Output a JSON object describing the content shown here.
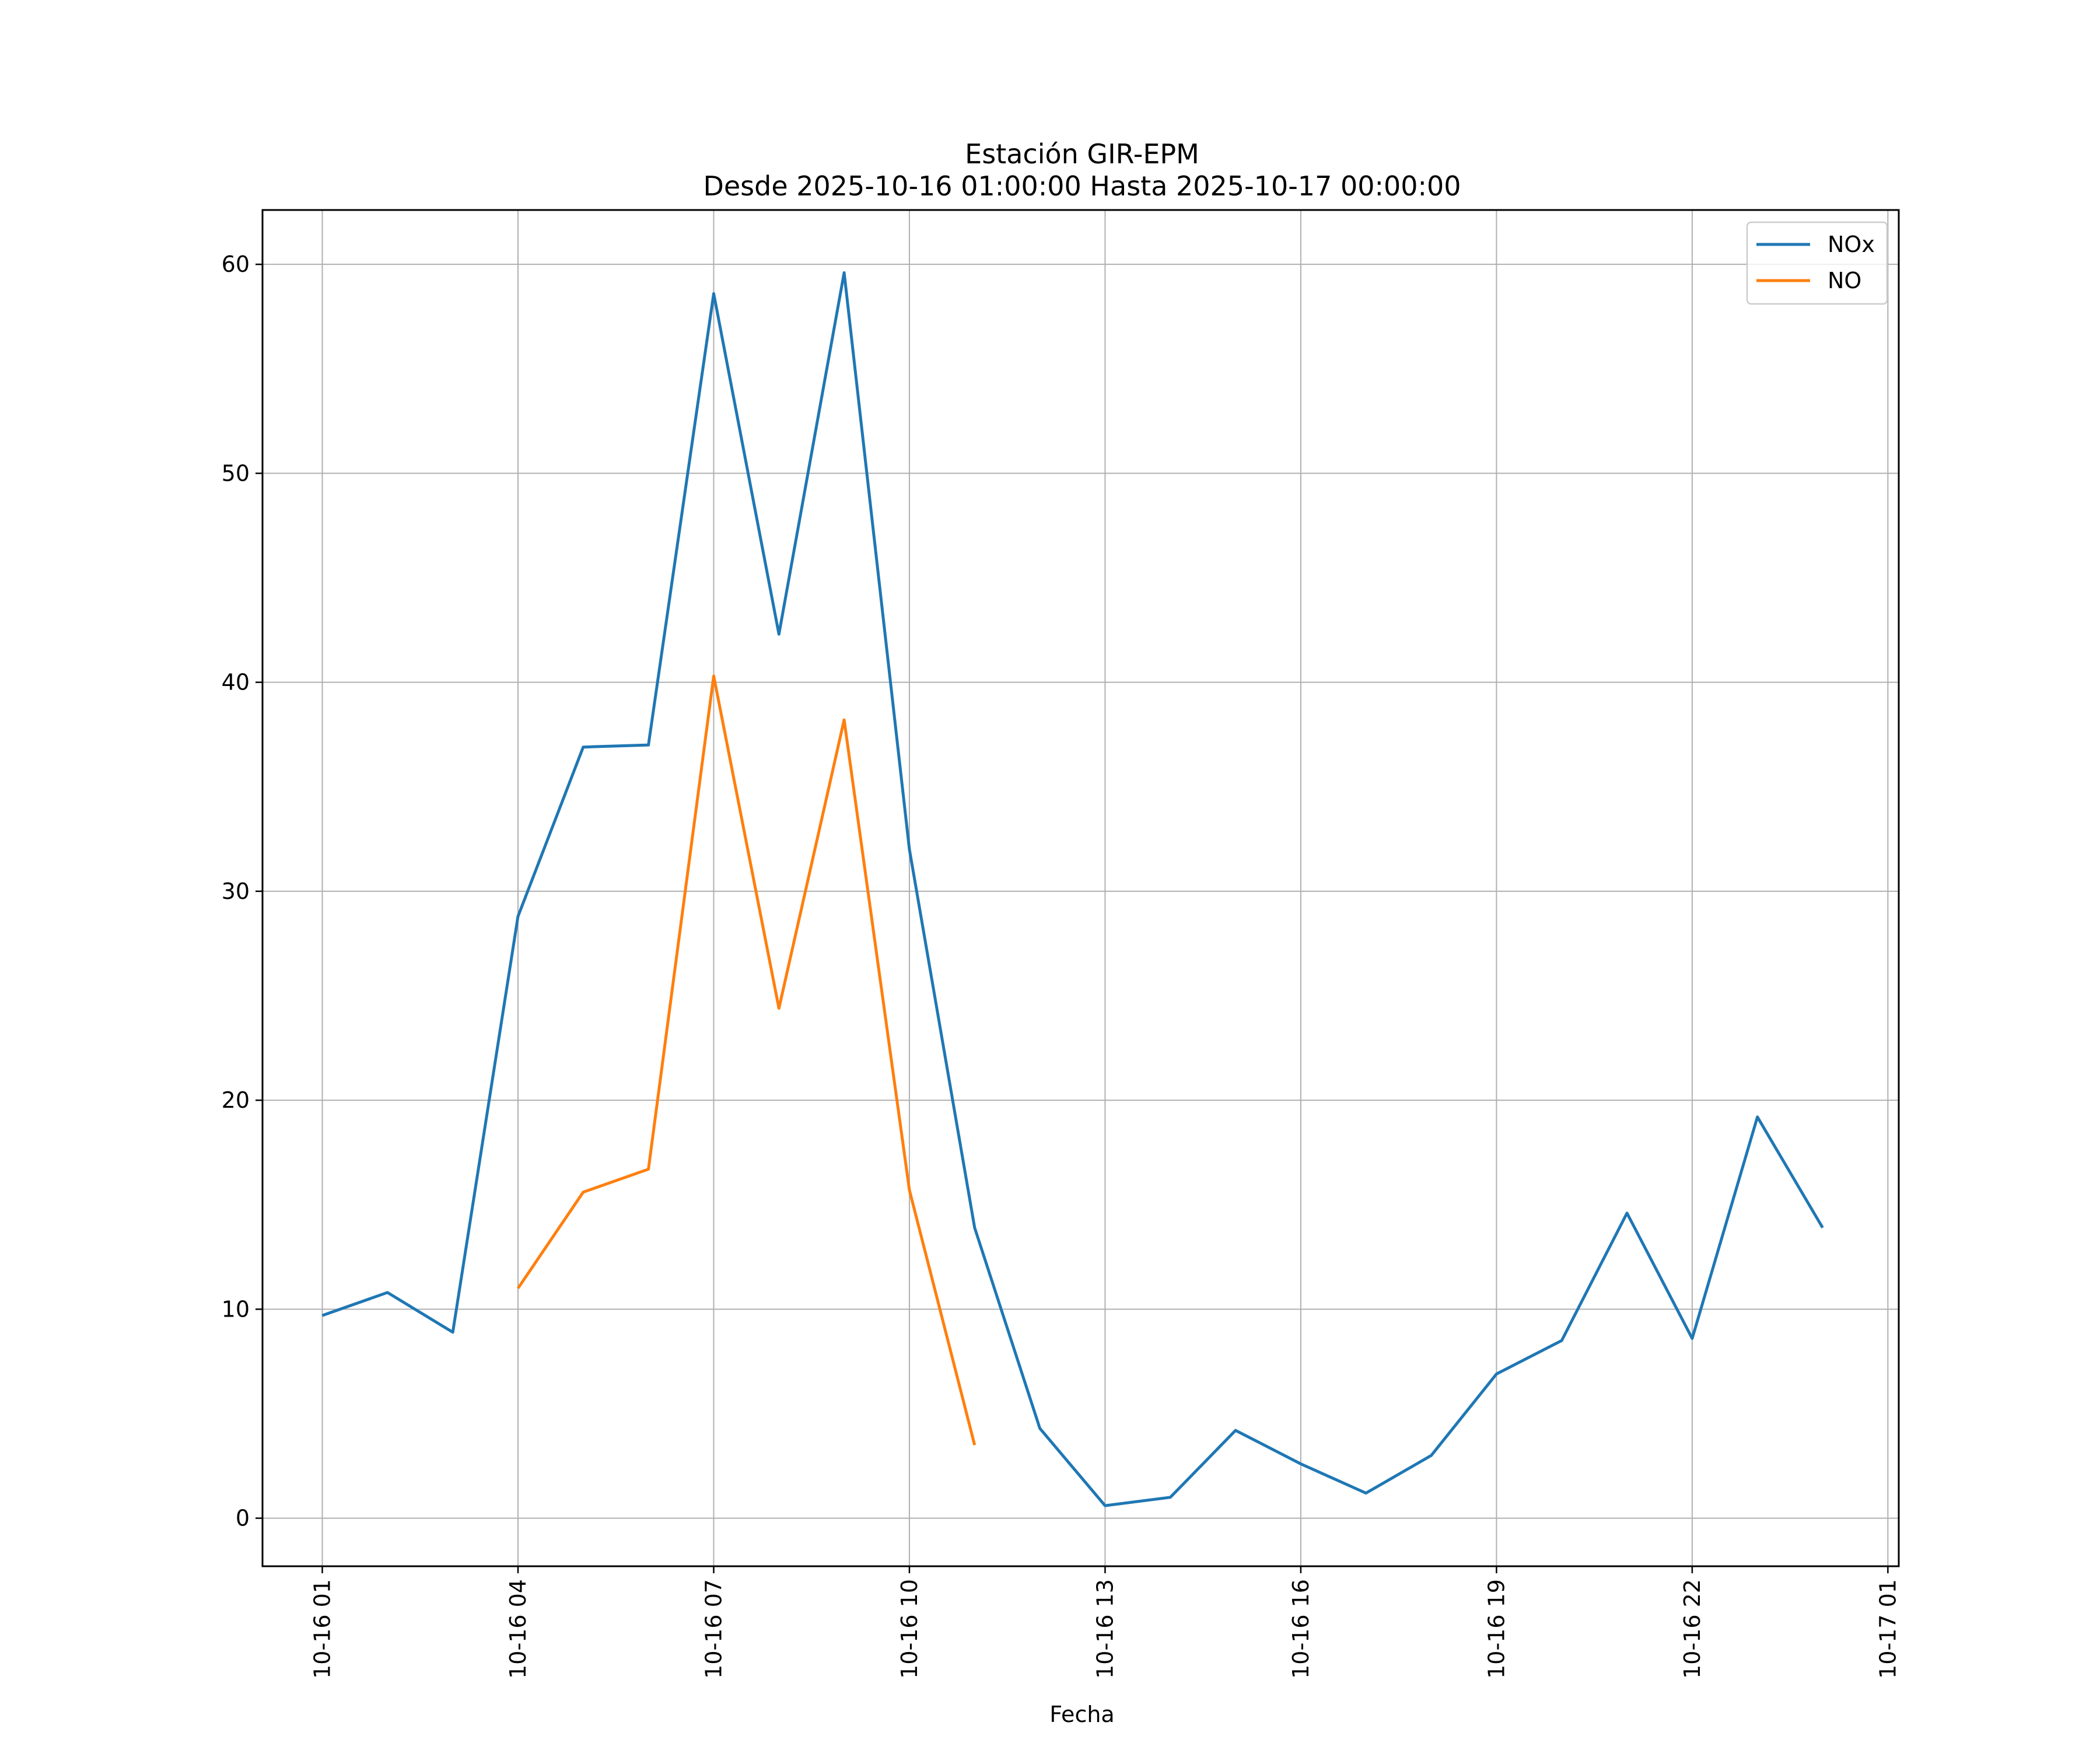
{
  "chart_data": {
    "type": "line",
    "title": "Estación GIR-EPM",
    "subtitle": "Desde 2025-10-16 01:00:00 Hasta 2025-10-17 00:00:00",
    "xlabel": "Fecha",
    "ylabel": "",
    "x_tick_labels": [
      "10-16 01",
      "10-16 04",
      "10-16 07",
      "10-16 10",
      "10-16 13",
      "10-16 16",
      "10-16 19",
      "10-16 22",
      "10-17 01"
    ],
    "y_ticks": [
      0,
      10,
      20,
      30,
      40,
      50,
      60
    ],
    "ylim": [
      -2.3,
      62.6
    ],
    "xlim": [
      "2025-10-16 00:05",
      "2025-10-17 01:10"
    ],
    "grid": true,
    "legend_position": "top-right",
    "series": [
      {
        "name": "NOx",
        "color": "#1f77b4",
        "x": [
          "2025-10-16 01:00",
          "2025-10-16 02:00",
          "2025-10-16 03:00",
          "2025-10-16 04:00",
          "2025-10-16 05:00",
          "2025-10-16 06:00",
          "2025-10-16 07:00",
          "2025-10-16 08:00",
          "2025-10-16 09:00",
          "2025-10-16 10:00",
          "2025-10-16 11:00",
          "2025-10-16 12:00",
          "2025-10-16 13:00",
          "2025-10-16 14:00",
          "2025-10-16 15:00",
          "2025-10-16 16:00",
          "2025-10-16 17:00",
          "2025-10-16 18:00",
          "2025-10-16 19:00",
          "2025-10-16 20:00",
          "2025-10-16 21:00",
          "2025-10-16 22:00",
          "2025-10-16 23:00",
          "2025-10-17 00:00"
        ],
        "y": [
          9.7,
          10.8,
          8.9,
          28.8,
          36.9,
          37.0,
          58.6,
          42.3,
          59.6,
          32.0,
          13.9,
          4.3,
          0.6,
          1.0,
          4.2,
          2.6,
          1.2,
          3.0,
          6.9,
          8.5,
          14.6,
          8.6,
          19.2,
          13.9
        ]
      },
      {
        "name": "NO",
        "color": "#ff7f0e",
        "x": [
          "2025-10-16 04:00",
          "2025-10-16 05:00",
          "2025-10-16 06:00",
          "2025-10-16 07:00",
          "2025-10-16 08:00",
          "2025-10-16 09:00",
          "2025-10-16 10:00",
          "2025-10-16 11:00"
        ],
        "y": [
          11.0,
          15.6,
          16.7,
          40.3,
          24.4,
          38.2,
          15.7,
          3.5
        ]
      }
    ]
  }
}
